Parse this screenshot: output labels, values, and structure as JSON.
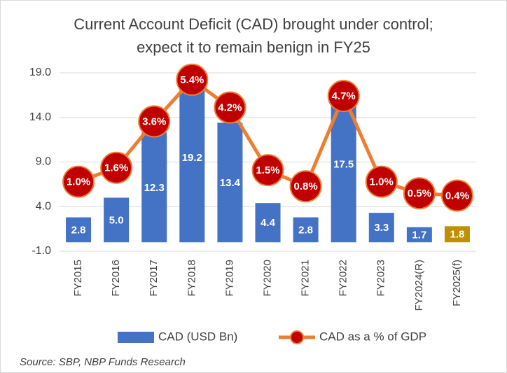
{
  "chart_data": {
    "type": "bar_line",
    "title": [
      "Current Account Deficit (CAD) brought under control;",
      "expect it to remain benign in FY25"
    ],
    "categories": [
      "FY2015",
      "FY2016",
      "FY2017",
      "FY2018",
      "FY2019",
      "FY2020",
      "FY2021",
      "FY2022",
      "FY2023",
      "FY2024(R)",
      "FY2025(f)"
    ],
    "series": [
      {
        "name": "CAD (USD Bn)",
        "type": "bar",
        "color": "#4472c4",
        "colors": [
          "#4472c4",
          "#4472c4",
          "#4472c4",
          "#4472c4",
          "#4472c4",
          "#4472c4",
          "#4472c4",
          "#4472c4",
          "#4472c4",
          "#4472c4",
          "#bf9000"
        ],
        "values": [
          2.8,
          5,
          12.3,
          19.2,
          13.4,
          4.4,
          2.8,
          17.5,
          3.3,
          1.7,
          1.8
        ],
        "value_labels": [
          "2.8",
          "5.0",
          "12.3",
          "19.2",
          "13.4",
          "4.4",
          "2.8",
          "17.5",
          "3.3",
          "1.7",
          "1.8"
        ]
      },
      {
        "name": "CAD as a % of GDP",
        "type": "line",
        "axis": "y2",
        "color": "#ed7d31",
        "marker_color": "#c00000",
        "values": [
          1.0,
          1.6,
          3.6,
          5.4,
          4.2,
          1.5,
          0.8,
          4.7,
          1.0,
          0.5,
          0.4
        ],
        "value_labels": [
          "1.0%",
          "1.6%",
          "3.6%",
          "5.4%",
          "4.2%",
          "1.5%",
          "0.8%",
          "4.7%",
          "1.0%",
          "0.5%",
          "0.4%"
        ]
      }
    ],
    "ylim": [
      -1,
      19
    ],
    "yticks": [
      {
        "value": -1,
        "label": "-1.0"
      },
      {
        "value": 4,
        "label": "4.0"
      },
      {
        "value": 9,
        "label": "9.0"
      },
      {
        "value": 14,
        "label": "14.0"
      },
      {
        "value": 19,
        "label": "19.0"
      }
    ],
    "y2lim": [
      -2,
      5.7
    ],
    "grid": true,
    "legend": "bottom",
    "source": "Source: SBP, NBP Funds Research"
  }
}
